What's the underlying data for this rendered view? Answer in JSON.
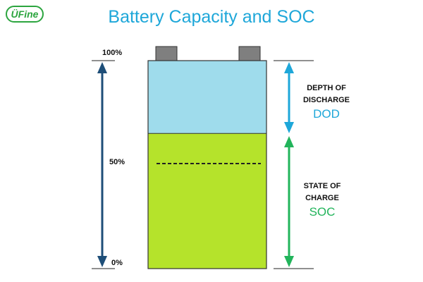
{
  "logo": {
    "text": "ÜFine",
    "color": "#2ca53f"
  },
  "title": "Battery Capacity and SOC",
  "scale": {
    "top": "100%",
    "middle": "50%",
    "bottom": "0%"
  },
  "dod": {
    "line1": "DEPTH OF",
    "line2": "DISCHARGE",
    "abbr": "DOD",
    "color": "#1ea7d9"
  },
  "soc": {
    "line1": "STATE OF",
    "line2": "CHARGE",
    "abbr": "SOC",
    "color": "#22b45b"
  },
  "battery": {
    "discharged_fraction": 0.35,
    "charged_fraction": 0.65,
    "discharged_color": "#9fdcec",
    "charged_color": "#b5e32b",
    "terminal_color": "#7f7f7f"
  },
  "colors": {
    "scale_arrow": "#1e4e78"
  }
}
